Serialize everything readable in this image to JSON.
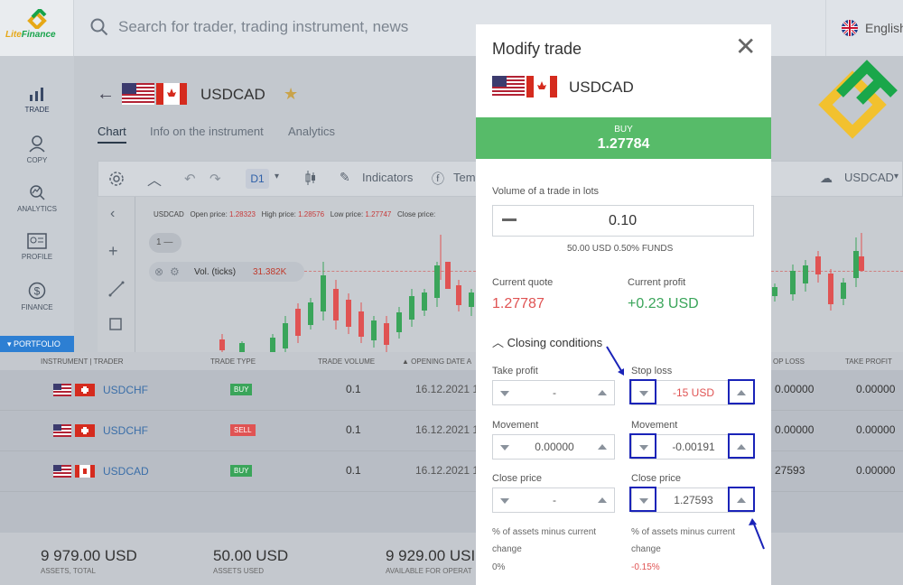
{
  "brand": {
    "name_part1": "Lite",
    "name_part2": "Finance",
    "accent": "#16a34a",
    "accent2": "#e6a817"
  },
  "search": {
    "placeholder": "Search for trader, trading instrument, news"
  },
  "language": {
    "label": "English",
    "icon": "uk-flag-icon"
  },
  "nav": {
    "items": [
      {
        "label": "TRADE",
        "icon": "chart-bars-icon"
      },
      {
        "label": "COPY",
        "icon": "user-copy-icon"
      },
      {
        "label": "ANALYTICS",
        "icon": "analytics-icon"
      },
      {
        "label": "PROFILE",
        "icon": "profile-card-icon"
      },
      {
        "label": "FINANCE",
        "icon": "dollar-coin-icon"
      }
    ],
    "portfolio": "PORTFOLIO"
  },
  "header": {
    "symbol": "USDCAD",
    "tabs": [
      "Chart",
      "Info on the instrument",
      "Analytics"
    ]
  },
  "toolbar": {
    "timeframe": "D1",
    "indicators": "Indicators",
    "templates": "Tem",
    "symbol": "USDCAD"
  },
  "chart_info": {
    "symbol": "USDCAD",
    "open_label": "Open price:",
    "open": "1.28323",
    "high_label": "High price:",
    "high": "1.28576",
    "low_label": "Low price:",
    "low": "1.27747",
    "close_label": "Close price:",
    "pane_index": "1",
    "vol_label": "Vol. (ticks)",
    "vol_value": "31.382K"
  },
  "table": {
    "headers": [
      "INSTRUMENT | TRADER",
      "TRADE TYPE",
      "TRADE VOLUME",
      "OPENING DATE A",
      "OP LOSS",
      "TAKE PROFIT"
    ],
    "rows": [
      {
        "symbol": "USDCHF",
        "type": "BUY",
        "volume": "0.1",
        "date": "16.12.2021 1",
        "stop_loss": "0.00000",
        "take_profit": "0.00000"
      },
      {
        "symbol": "USDCHF",
        "type": "SELL",
        "volume": "0.1",
        "date": "16.12.2021 1",
        "stop_loss": "0.00000",
        "take_profit": "0.00000"
      },
      {
        "symbol": "USDCAD",
        "type": "BUY",
        "volume": "0.1",
        "date": "16.12.2021 1",
        "stop_loss": "27593",
        "take_profit": "0.00000"
      }
    ]
  },
  "footer": {
    "assets_total": "9 979.00 USD",
    "assets_total_label": "ASSETS, TOTAL",
    "assets_used": "50.00 USD",
    "assets_used_label": "ASSETS USED",
    "available": "9 929.00 USI",
    "available_label": "AVAILABLE FOR OPERAT"
  },
  "modal": {
    "title": "Modify trade",
    "symbol": "USDCAD",
    "buy_label": "BUY",
    "buy_price": "1.27784",
    "volume_label": "Volume of a trade in lots",
    "volume_value": "0.10",
    "volume_sub": "50.00 USD  0.50% FUNDS",
    "current_quote_label": "Current quote",
    "current_quote": "1.27787",
    "current_profit_label": "Current profit",
    "current_profit": "+0.23 USD",
    "closing_label": "Closing conditions",
    "take_profit_label": "Take profit",
    "take_profit_value": "-",
    "stop_loss_label": "Stop loss",
    "stop_loss_value": "-15 USD",
    "movement_label": "Movement",
    "tp_movement": "0.00000",
    "sl_movement": "-0.00191",
    "close_price_label": "Close price",
    "tp_close_price": "-",
    "sl_close_price": "1.27593",
    "pct_label": "% of assets minus current change",
    "tp_pct": "0%",
    "sl_pct": "-0.15%"
  },
  "colors": {
    "buy": "#57bb69",
    "sell": "#e05353",
    "highlight": "#1a23b8",
    "link": "#3a6ea8"
  }
}
